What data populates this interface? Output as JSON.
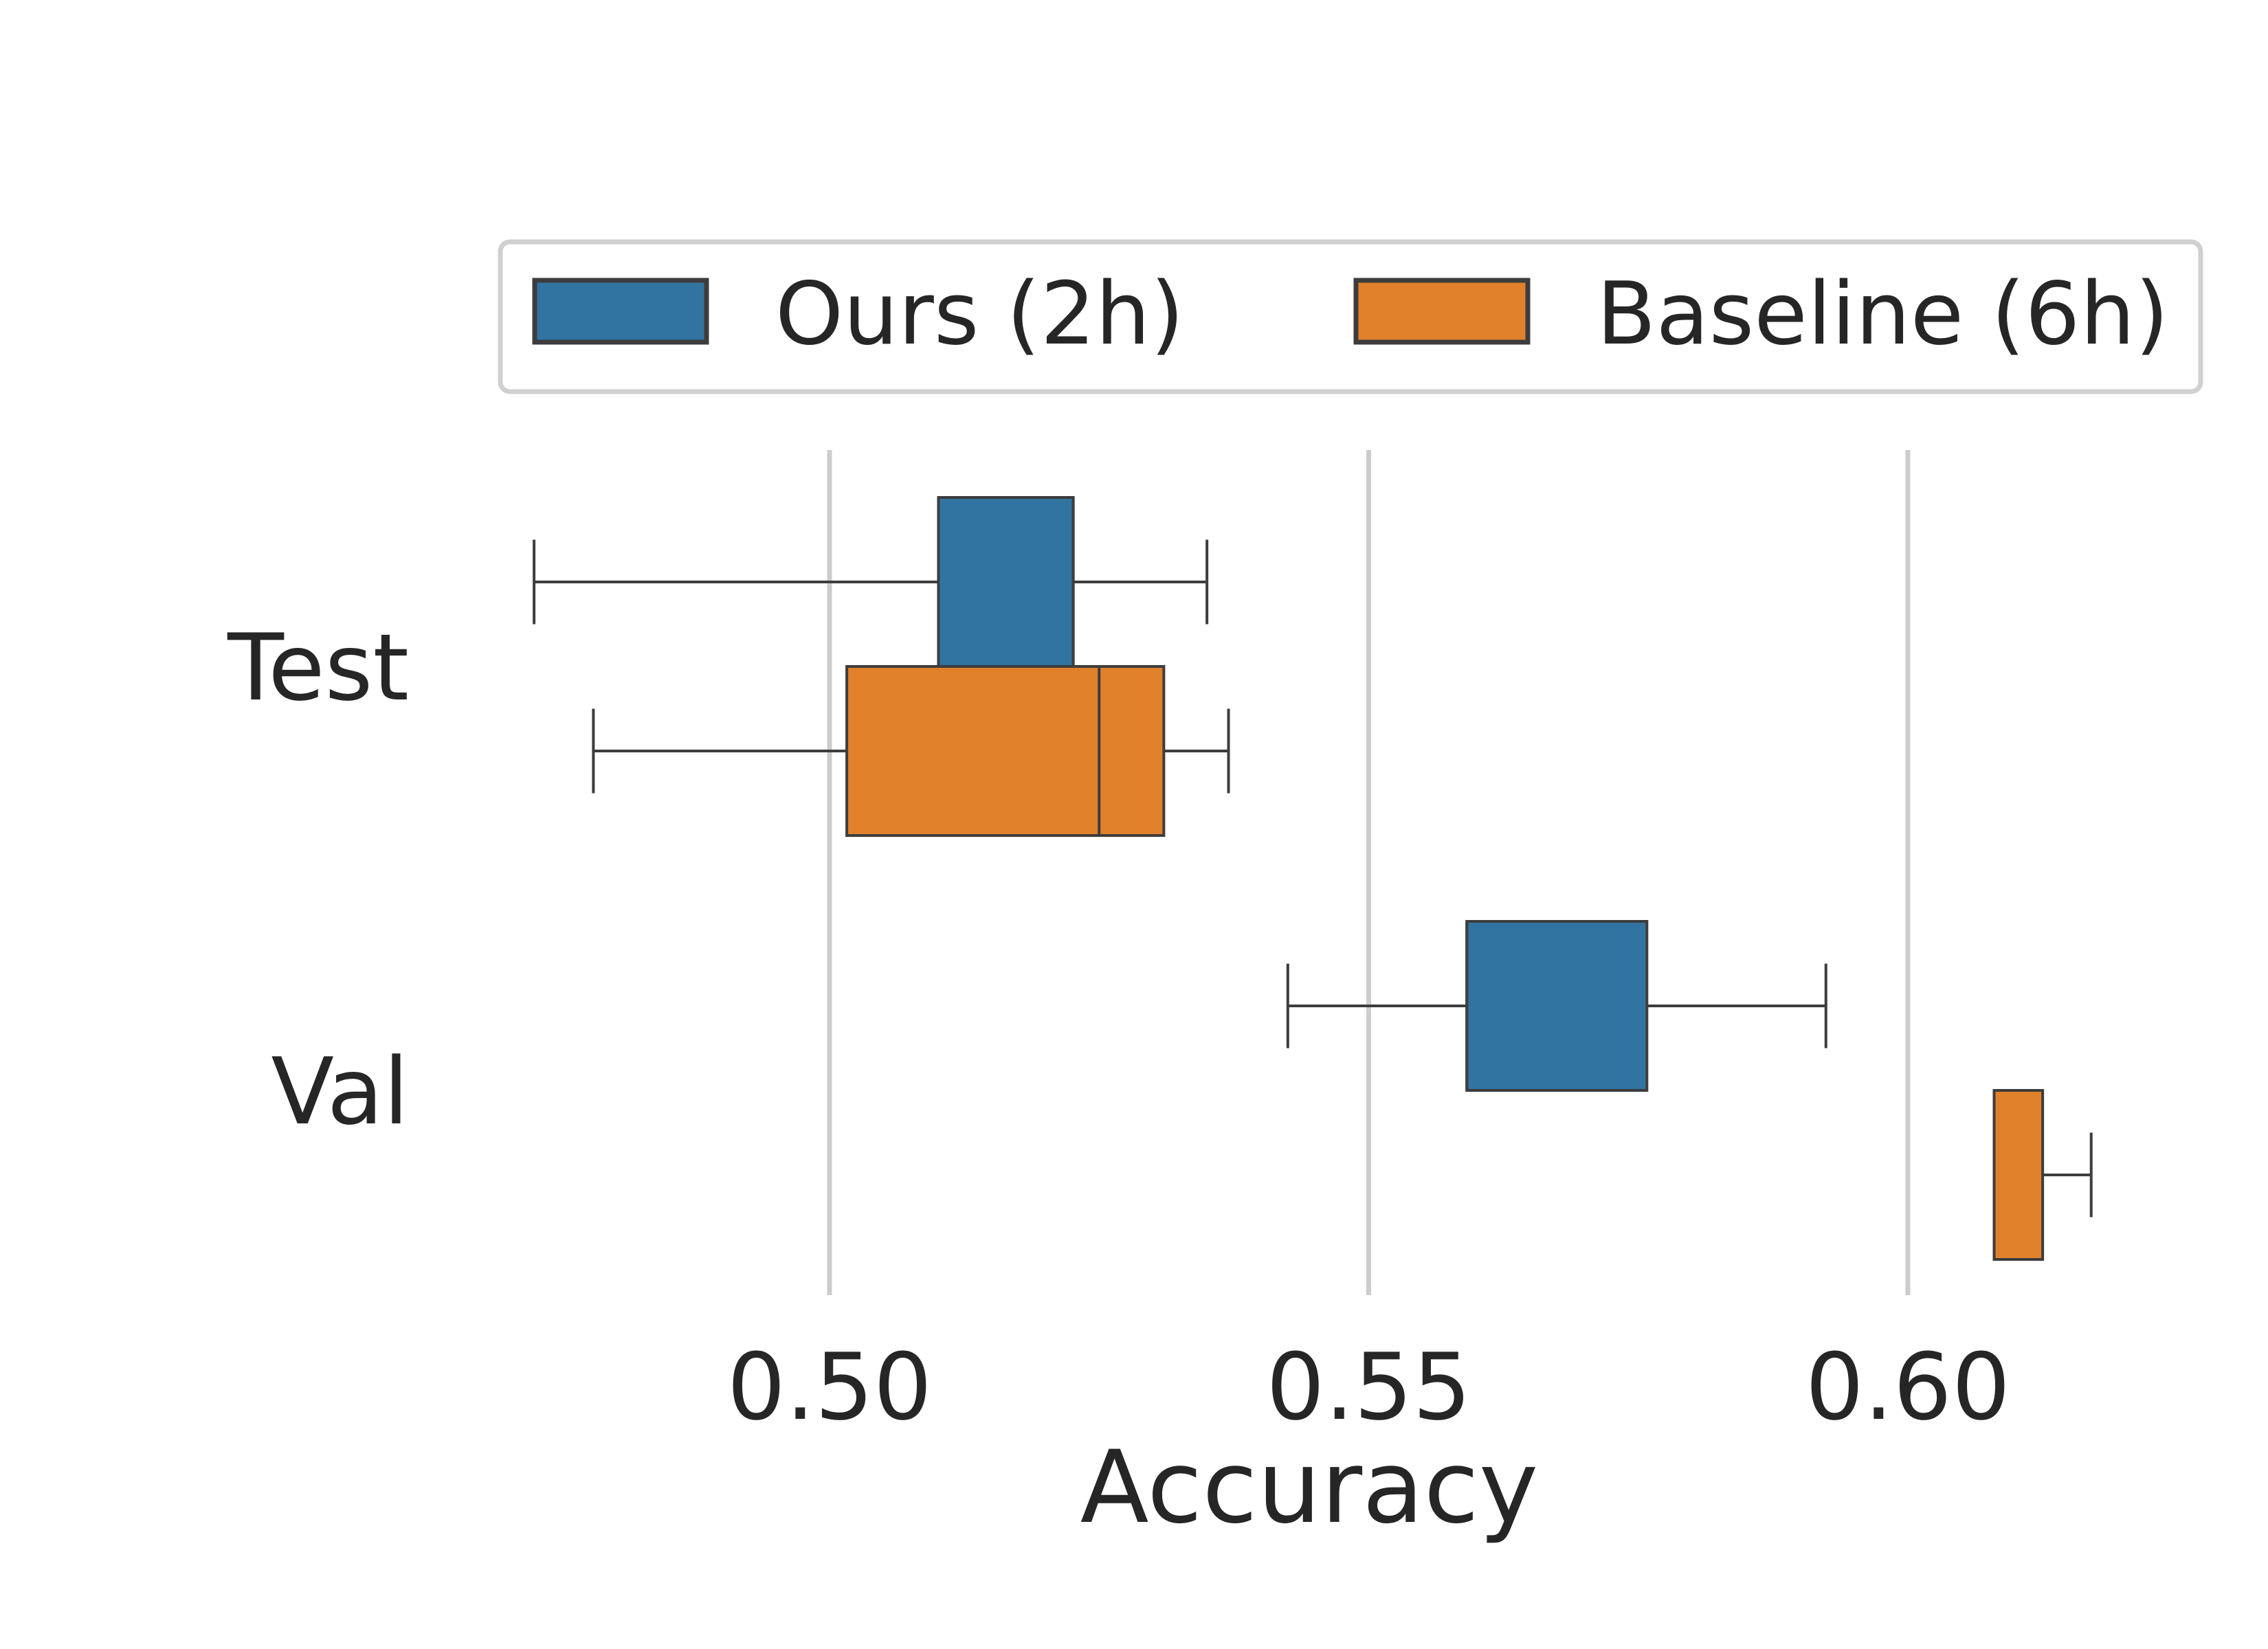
{
  "chart_data": {
    "type": "box",
    "orientation": "horizontal",
    "title": "",
    "xlabel": "Accuracy",
    "ylabel": "",
    "xlim": [
      0.4735,
      0.6165
    ],
    "xticks": [
      0.5,
      0.55,
      0.6
    ],
    "xtick_labels": [
      "0.50",
      "0.55",
      "0.60"
    ],
    "grid": "vertical lines at x ticks",
    "categories": [
      "Test",
      "Val"
    ],
    "legend": {
      "placement": "top",
      "columns": 2
    },
    "series": [
      {
        "name": "Ours (2h)",
        "color": "#3274a1",
        "boxes": [
          {
            "category": "Test",
            "whisker_low": 0.4726,
            "q1": 0.5101,
            "median": 0.5226,
            "q3": 0.5226,
            "whisker_high": 0.535
          },
          {
            "category": "Val",
            "whisker_low": 0.5425,
            "q1": 0.5591,
            "median": 0.5591,
            "q3": 0.5758,
            "whisker_high": 0.5924
          }
        ]
      },
      {
        "name": "Baseline (6h)",
        "color": "#e1812c",
        "boxes": [
          {
            "category": "Test",
            "whisker_low": 0.4781,
            "q1": 0.5016,
            "median": 0.525,
            "q3": 0.531,
            "whisker_high": 0.537
          },
          {
            "category": "Val",
            "whisker_low": 0.608,
            "q1": 0.608,
            "median": 0.608,
            "q3": 0.6125,
            "whisker_high": 0.617
          }
        ]
      }
    ]
  }
}
